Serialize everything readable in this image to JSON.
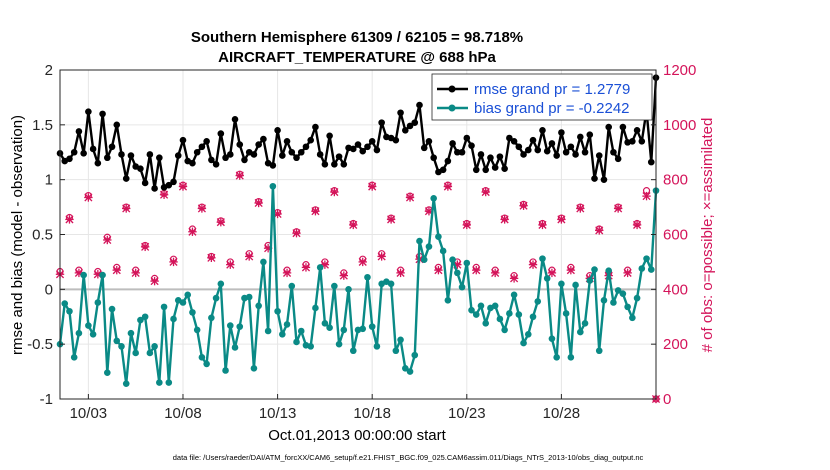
{
  "chart_data": {
    "type": "line",
    "title": "Southern Hemisphere 61309 / 62105 = 98.718%",
    "subtitle": "AIRCRAFT_TEMPERATURE @ 688 hPa",
    "xlabel": "Oct.01,2013 00:00:00 start",
    "ylabel_left": "rmse and bias (model - observation)",
    "ylabel_right": "# of obs: o=possible; ×=assimilated",
    "footer": "data file: /Users/raeder/DAI/ATM_forcXX/CAM6_setup/f.e21.FHIST_BGC.f09_025.CAM6assim.011/Diags_NTrS_2013-10/obs_diag_output.nc",
    "xlim": [
      1.5,
      33.0
    ],
    "xticks": [
      3,
      8,
      13,
      18,
      23,
      28
    ],
    "xtick_labels": [
      "10/03",
      "10/08",
      "10/13",
      "10/18",
      "10/23",
      "10/28"
    ],
    "ylim_left": [
      -1,
      2
    ],
    "yticks_left": [
      -1,
      -0.5,
      0,
      0.5,
      1,
      1.5,
      2
    ],
    "ytick_labels_left": [
      "-1",
      "-0.5",
      "0",
      "0.5",
      "1",
      "1.5",
      "2"
    ],
    "ylim_right": [
      0,
      1200
    ],
    "yticks_right": [
      0,
      200,
      400,
      600,
      800,
      1000,
      1200
    ],
    "ytick_labels_right": [
      "0",
      "200",
      "400",
      "600",
      "800",
      "1000",
      "1200"
    ],
    "grid": true,
    "legend_position": "top-right",
    "colors": {
      "rmse": "#000000",
      "bias": "#0a8a86",
      "obs": "#d4145a",
      "zero_line": "#bdbdbd",
      "grid": "#e6e6e6"
    },
    "series": [
      {
        "name": "rmse grand pr = 1.2779",
        "x": [
          1.5,
          1.75,
          2.0,
          2.25,
          2.5,
          2.75,
          3.0,
          3.25,
          3.5,
          3.75,
          4.0,
          4.25,
          4.5,
          4.75,
          5.0,
          5.25,
          5.5,
          5.75,
          6.0,
          6.25,
          6.5,
          6.75,
          7.0,
          7.25,
          7.5,
          7.75,
          8.0,
          8.25,
          8.5,
          8.75,
          9.0,
          9.25,
          9.5,
          9.75,
          10.0,
          10.25,
          10.5,
          10.75,
          11.0,
          11.25,
          11.5,
          11.75,
          12.0,
          12.25,
          12.5,
          12.75,
          13.0,
          13.25,
          13.5,
          13.75,
          14.0,
          14.25,
          14.5,
          14.75,
          15.0,
          15.25,
          15.5,
          15.75,
          16.0,
          16.25,
          16.5,
          16.75,
          17.0,
          17.25,
          17.5,
          17.75,
          18.0,
          18.25,
          18.5,
          18.75,
          19.0,
          19.25,
          19.5,
          19.75,
          20.0,
          20.25,
          20.5,
          20.75,
          21.0,
          21.25,
          21.5,
          21.75,
          22.0,
          22.25,
          22.5,
          22.75,
          23.0,
          23.25,
          23.5,
          23.75,
          24.0,
          24.25,
          24.5,
          24.75,
          25.0,
          25.25,
          25.5,
          25.75,
          26.0,
          26.25,
          26.5,
          26.75,
          27.0,
          27.25,
          27.5,
          27.75,
          28.0,
          28.25,
          28.5,
          28.75,
          29.0,
          29.25,
          29.5,
          29.75,
          30.0,
          30.25,
          30.5,
          30.75,
          31.0,
          31.25,
          31.5,
          31.75,
          32.0,
          32.25,
          32.5,
          32.75,
          33.0
        ],
        "values": [
          1.24,
          1.17,
          1.19,
          1.25,
          1.44,
          1.24,
          1.62,
          1.28,
          1.15,
          1.6,
          1.2,
          1.3,
          1.5,
          1.23,
          1.01,
          1.22,
          1.12,
          1.1,
          0.97,
          1.23,
          0.92,
          1.2,
          0.93,
          0.95,
          0.98,
          1.22,
          1.36,
          1.17,
          1.15,
          1.25,
          1.3,
          1.35,
          1.18,
          1.14,
          1.42,
          1.2,
          1.23,
          1.55,
          1.32,
          1.18,
          1.25,
          1.23,
          1.32,
          1.37,
          1.15,
          1.13,
          1.45,
          1.22,
          1.35,
          1.25,
          1.2,
          1.25,
          1.3,
          1.36,
          1.48,
          1.23,
          1.14,
          1.4,
          1.14,
          1.21,
          1.14,
          1.29,
          1.28,
          1.32,
          1.26,
          1.3,
          1.35,
          1.27,
          1.52,
          1.39,
          1.38,
          1.36,
          1.61,
          1.45,
          1.49,
          1.52,
          1.68,
          1.29,
          1.35,
          1.2,
          1.07,
          1.09,
          1.17,
          1.33,
          1.25,
          1.25,
          1.38,
          1.31,
          1.09,
          1.23,
          1.09,
          1.2,
          1.11,
          1.21,
          1.1,
          1.38,
          1.35,
          1.3,
          1.23,
          1.27,
          1.36,
          1.27,
          1.45,
          1.26,
          1.33,
          1.22,
          1.43,
          1.25,
          1.3,
          1.23,
          1.39,
          1.25,
          1.41,
          1.01,
          1.22,
          1.0,
          1.48,
          1.25,
          1.19,
          1.48,
          1.34,
          1.35,
          1.45,
          1.35,
          1.63,
          1.16,
          1.93
        ]
      },
      {
        "name": "bias grand pr = -0.2242",
        "x": [
          1.5,
          1.75,
          2.0,
          2.25,
          2.5,
          2.75,
          3.0,
          3.25,
          3.5,
          3.75,
          4.0,
          4.25,
          4.5,
          4.75,
          5.0,
          5.25,
          5.5,
          5.75,
          6.0,
          6.25,
          6.5,
          6.75,
          7.0,
          7.25,
          7.5,
          7.75,
          8.0,
          8.25,
          8.5,
          8.75,
          9.0,
          9.25,
          9.5,
          9.75,
          10.0,
          10.25,
          10.5,
          10.75,
          11.0,
          11.25,
          11.5,
          11.75,
          12.0,
          12.25,
          12.5,
          12.75,
          13.0,
          13.25,
          13.5,
          13.75,
          14.0,
          14.25,
          14.5,
          14.75,
          15.0,
          15.25,
          15.5,
          15.75,
          16.0,
          16.25,
          16.5,
          16.75,
          17.0,
          17.25,
          17.5,
          17.75,
          18.0,
          18.25,
          18.5,
          18.75,
          19.0,
          19.25,
          19.5,
          19.75,
          20.0,
          20.25,
          20.5,
          20.75,
          21.0,
          21.25,
          21.5,
          21.75,
          22.0,
          22.25,
          22.5,
          22.75,
          23.0,
          23.25,
          23.5,
          23.75,
          24.0,
          24.25,
          24.5,
          24.75,
          25.0,
          25.25,
          25.5,
          25.75,
          26.0,
          26.25,
          26.5,
          26.75,
          27.0,
          27.25,
          27.5,
          27.75,
          28.0,
          28.25,
          28.5,
          28.75,
          29.0,
          29.25,
          29.5,
          29.75,
          30.0,
          30.25,
          30.5,
          30.75,
          31.0,
          31.25,
          31.5,
          31.75,
          32.0,
          32.25,
          32.5,
          32.75,
          33.0
        ],
        "values": [
          -0.5,
          -0.13,
          -0.2,
          -0.62,
          -0.4,
          0.13,
          -0.33,
          -0.41,
          -0.12,
          0.13,
          -0.76,
          -0.18,
          -0.47,
          -0.52,
          -0.86,
          -0.4,
          -0.58,
          -0.28,
          -0.25,
          -0.58,
          -0.52,
          -0.85,
          -0.16,
          -0.85,
          -0.27,
          -0.1,
          -0.12,
          -0.05,
          -0.21,
          -0.37,
          -0.62,
          -0.68,
          -0.26,
          -0.08,
          0.05,
          -0.74,
          -0.33,
          -0.53,
          -0.34,
          -0.08,
          -0.07,
          -0.72,
          -0.15,
          0.25,
          -0.38,
          0.94,
          -0.2,
          -0.41,
          -0.32,
          0.03,
          -0.48,
          -0.38,
          -0.51,
          -0.52,
          -0.17,
          0.2,
          -0.31,
          -0.35,
          0.03,
          -0.5,
          -0.37,
          0.0,
          -0.56,
          -0.37,
          -0.36,
          0.11,
          -0.34,
          -0.52,
          0.05,
          0.07,
          0.05,
          -0.56,
          -0.46,
          -0.72,
          -0.75,
          -0.6,
          0.44,
          0.27,
          0.39,
          0.83,
          0.48,
          0.35,
          -0.1,
          0.27,
          0.15,
          0.02,
          0.24,
          -0.19,
          -0.23,
          -0.15,
          -0.31,
          -0.17,
          -0.15,
          -0.27,
          -0.37,
          -0.22,
          -0.05,
          -0.23,
          -0.49,
          -0.41,
          -0.25,
          -0.11,
          0.28,
          0.1,
          -0.45,
          -0.62,
          0.05,
          -0.22,
          -0.62,
          0.04,
          -0.39,
          -0.31,
          0.08,
          0.18,
          -0.56,
          -0.1,
          0.17,
          -0.12,
          -0.01,
          -0.04,
          -0.16,
          -0.26,
          -0.08,
          0.19,
          0.28,
          0.18,
          0.9
        ]
      }
    ],
    "obs_possible": {
      "x": [
        1.5,
        2.0,
        2.5,
        3.0,
        3.5,
        4.0,
        4.5,
        5.0,
        5.5,
        6.0,
        6.5,
        7.0,
        7.5,
        8.0,
        8.5,
        9.0,
        9.5,
        10.0,
        10.5,
        11.0,
        11.5,
        12.0,
        12.5,
        13.0,
        13.5,
        14.0,
        14.5,
        15.0,
        15.5,
        16.0,
        16.5,
        17.0,
        17.5,
        18.0,
        18.5,
        19.0,
        19.5,
        20.0,
        20.5,
        21.0,
        21.5,
        22.0,
        22.5,
        23.0,
        23.5,
        24.0,
        24.5,
        25.0,
        25.5,
        26.0,
        26.5,
        27.0,
        27.5,
        28.0,
        28.5,
        29.0,
        29.5,
        30.0,
        30.5,
        31.0,
        31.5,
        32.0,
        32.5,
        33.0
      ],
      "values": [
        465,
        662,
        470,
        742,
        465,
        590,
        480,
        700,
        470,
        560,
        440,
        750,
        510,
        780,
        620,
        700,
        520,
        650,
        500,
        820,
        530,
        720,
        560,
        680,
        470,
        610,
        490,
        690,
        500,
        760,
        460,
        640,
        510,
        780,
        530,
        660,
        470,
        740,
        520,
        690,
        480,
        780,
        500,
        640,
        480,
        760,
        470,
        660,
        450,
        710,
        500,
        640,
        470,
        660,
        480,
        700,
        450,
        620,
        460,
        700,
        470,
        640,
        760,
        0
      ]
    },
    "obs_assimilated": {
      "x": [
        1.5,
        2.0,
        2.5,
        3.0,
        3.5,
        4.0,
        4.5,
        5.0,
        5.5,
        6.0,
        6.5,
        7.0,
        7.5,
        8.0,
        8.5,
        9.0,
        9.5,
        10.0,
        10.5,
        11.0,
        11.5,
        12.0,
        12.5,
        13.0,
        13.5,
        14.0,
        14.5,
        15.0,
        15.5,
        16.0,
        16.5,
        17.0,
        17.5,
        18.0,
        18.5,
        19.0,
        19.5,
        20.0,
        20.5,
        21.0,
        21.5,
        22.0,
        22.5,
        23.0,
        23.5,
        24.0,
        24.5,
        25.0,
        25.5,
        26.0,
        26.5,
        27.0,
        27.5,
        28.0,
        28.5,
        29.0,
        29.5,
        30.0,
        30.5,
        31.0,
        31.5,
        32.0,
        32.5,
        33.0
      ],
      "values": [
        455,
        655,
        460,
        735,
        455,
        580,
        470,
        695,
        460,
        555,
        430,
        745,
        500,
        775,
        610,
        695,
        515,
        645,
        490,
        815,
        520,
        715,
        550,
        675,
        460,
        605,
        480,
        685,
        490,
        755,
        450,
        635,
        500,
        775,
        520,
        655,
        460,
        735,
        510,
        685,
        470,
        775,
        490,
        635,
        470,
        755,
        460,
        655,
        440,
        705,
        490,
        635,
        460,
        655,
        470,
        695,
        440,
        615,
        450,
        695,
        460,
        635,
        740,
        0
      ]
    }
  }
}
